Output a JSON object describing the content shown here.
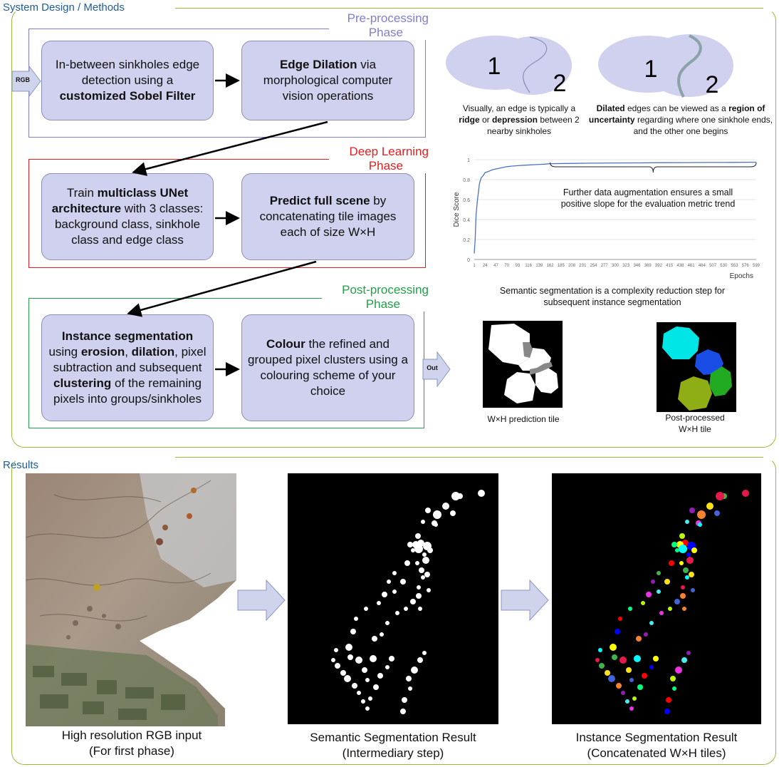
{
  "sections": {
    "methods_title": "System Design / Methods",
    "results_title": "Results"
  },
  "phases": {
    "pre": {
      "label_line1": "Pre-processing",
      "label_line2": "Phase",
      "color": "#7f7fcc"
    },
    "deep": {
      "label_line1": "Deep Learning",
      "label_line2": "Phase",
      "color": "#e02020"
    },
    "post": {
      "label_line1": "Post-processing",
      "label_line2": "Phase",
      "color": "#22a04a"
    }
  },
  "boxes": {
    "sobel": {
      "t1": "In-between sinkholes edge detection using a ",
      "b1": "customized Sobel Filter"
    },
    "dilation": {
      "b1": "Edge Dilation",
      "t1": " via morphological computer vision operations"
    },
    "unet": {
      "t1": "Train ",
      "b1": "multiclass UNet architecture",
      "t2": " with 3 classes: background class, sinkhole class and edge class"
    },
    "predict": {
      "b1": "Predict full scene",
      "t1": " by concatenating tile images each of size W×H"
    },
    "instance": {
      "b1": "Instance segmentation",
      "t1": " using ",
      "b2": "erosion",
      "t2": ", ",
      "b3": "dilation",
      "t3": ", pixel subtraction and subsequent ",
      "b4": "clustering",
      "t4": " of the remaining pixels into groups/sinkholes"
    },
    "colour": {
      "b1": "Colour",
      "t1": " the refined and grouped pixel clusters using a colouring scheme of your choice"
    }
  },
  "io": {
    "input": "RGB",
    "output": "Out"
  },
  "sinkhole_diagrams": {
    "num1": "1",
    "num2": "2",
    "left_caption": {
      "t1": "Visually, an edge is typically a ",
      "b1": "ridge",
      "t2": " or ",
      "b2": "depression",
      "t3": " between 2 nearby sinkholes"
    },
    "right_caption": {
      "b1": "Dilated",
      "t1": " edges can be viewed as a ",
      "b2": "region of uncertainty",
      "t2": " regarding where one sinkhole ends, and the other one begins"
    }
  },
  "chart_data": {
    "type": "line",
    "xlabel": "Epochs",
    "ylabel": "Dice Score",
    "x_ticks": [
      "1",
      "24",
      "47",
      "70",
      "93",
      "116",
      "139",
      "162",
      "185",
      "208",
      "231",
      "254",
      "277",
      "300",
      "323",
      "346",
      "369",
      "392",
      "415",
      "438",
      "461",
      "484",
      "507",
      "530",
      "553",
      "576",
      "599"
    ],
    "y_ticks": [
      "0",
      "0.2",
      "0.4",
      "0.6",
      "0.8",
      "1"
    ],
    "ylim": [
      0,
      1
    ],
    "xlim": [
      1,
      599
    ],
    "series": [
      {
        "color": "#4a72c4",
        "x": [
          1,
          3,
          5,
          8,
          12,
          16,
          20,
          24,
          30,
          40,
          50,
          60,
          70,
          80,
          93,
          110,
          130,
          150,
          162,
          200,
          250,
          300,
          350,
          400,
          450,
          500,
          550,
          580,
          599
        ],
        "y": [
          0.06,
          0.2,
          0.45,
          0.6,
          0.76,
          0.82,
          0.84,
          0.87,
          0.88,
          0.9,
          0.91,
          0.92,
          0.93,
          0.935,
          0.94,
          0.945,
          0.95,
          0.955,
          0.96,
          0.962,
          0.965,
          0.967,
          0.968,
          0.97,
          0.971,
          0.972,
          0.973,
          0.974,
          0.975
        ]
      }
    ],
    "annotation": "Further data augmentation ensures a small positive slope for the evaluation metric trend",
    "caption": "Semantic segmentation is a complexity reduction step for subsequent instance segmentation"
  },
  "tiles": {
    "prediction_caption": "W×H prediction tile",
    "post_caption_line1": "Post-processed",
    "post_caption_line2": "W×H tile"
  },
  "results": {
    "rgb_caption_line1": "High resolution RGB input",
    "rgb_caption_line2": "(For first phase)",
    "semantic_caption_line1": "Semantic Segmentation Result",
    "semantic_caption_line2": "(Intermediary step)",
    "instance_caption_line1": "Instance Segmentation Result",
    "instance_caption_line2": "(Concatenated W×H tiles)"
  },
  "colors": {
    "box_fill": "#cfd1ee",
    "frame": "#9bb83a",
    "title": "#1f5c99",
    "arrow_fill": "#cfd4ec"
  }
}
